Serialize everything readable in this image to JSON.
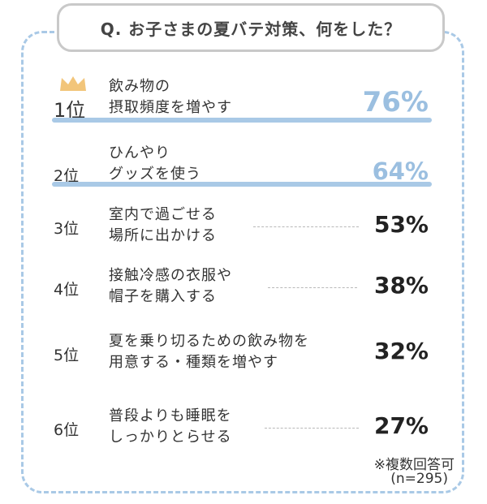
{
  "title": "Q. お子さまの夏バテ対策、何をした？",
  "chart_data": {
    "type": "bar",
    "title": "Q. お子さまの夏バテ対策、何をした？",
    "items": [
      {
        "rank": "1位",
        "label_lines": [
          "飲み物の",
          "摂取頻度を増やす"
        ],
        "value": 76,
        "value_text": "76%"
      },
      {
        "rank": "2位",
        "label_lines": [
          "ひんやり",
          "グッズを使う"
        ],
        "value": 64,
        "value_text": "64%"
      },
      {
        "rank": "3位",
        "label_lines": [
          "室内で過ごせる",
          "場所に出かける"
        ],
        "value": 53,
        "value_text": "53%"
      },
      {
        "rank": "4位",
        "label_lines": [
          "接触冷感の衣服や",
          "帽子を購入する"
        ],
        "value": 38,
        "value_text": "38%"
      },
      {
        "rank": "5位",
        "label_lines": [
          "夏を乗り切るための飲み物を",
          "用意する・種類を増やす"
        ],
        "value": 32,
        "value_text": "32%"
      },
      {
        "rank": "6位",
        "label_lines": [
          "普段よりも睡眠を",
          "しっかりとらせる"
        ],
        "value": 27,
        "value_text": "27%"
      }
    ]
  },
  "notes": {
    "multiple": "※複数回答可",
    "sample": "(n=295)"
  },
  "colors": {
    "accent": "#a9c9e6",
    "highlight_text": "#9bbfe0",
    "crown": "#f2c57a"
  },
  "icons": {
    "crown": "crown-icon"
  }
}
